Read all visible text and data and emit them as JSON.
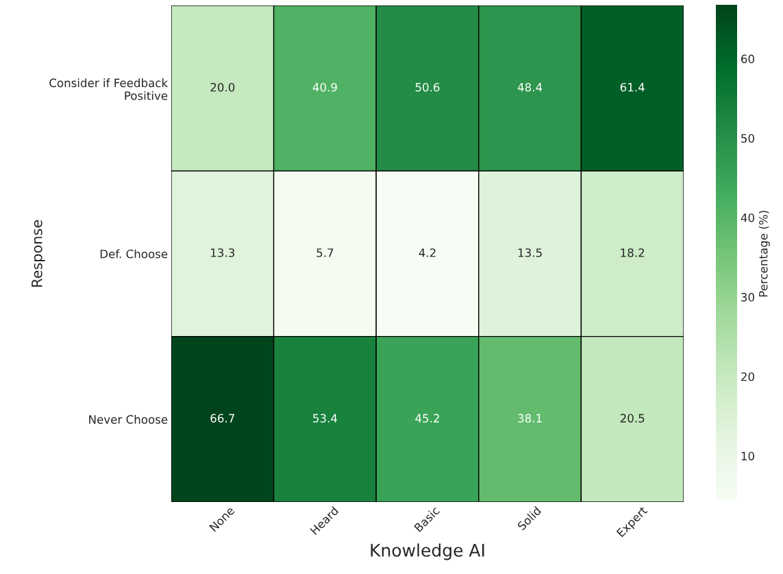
{
  "chart_data": {
    "type": "heatmap",
    "xlabel": "Knowledge AI",
    "ylabel": "Response",
    "clabel": "Percentage (%)",
    "categories": [
      "None",
      "Heard",
      "Basic",
      "Solid",
      "Expert"
    ],
    "y_categories": [
      "Consider if Feedback\nPositive",
      "Def. Choose",
      "Never Choose"
    ],
    "cells": [
      [
        20.0,
        40.9,
        50.6,
        48.4,
        61.4
      ],
      [
        13.3,
        5.7,
        4.2,
        13.5,
        18.2
      ],
      [
        66.7,
        53.4,
        45.2,
        38.1,
        20.5
      ]
    ],
    "cell_labels": [
      [
        "20.0",
        "40.9",
        "50.6",
        "48.4",
        "61.4"
      ],
      [
        "13.3",
        "5.7",
        "4.2",
        "13.5",
        "18.2"
      ],
      [
        "66.7",
        "53.4",
        "45.2",
        "38.1",
        "20.5"
      ]
    ],
    "clim": [
      4.2,
      66.7
    ],
    "cticks": [
      10,
      20,
      30,
      40,
      50,
      60
    ]
  }
}
